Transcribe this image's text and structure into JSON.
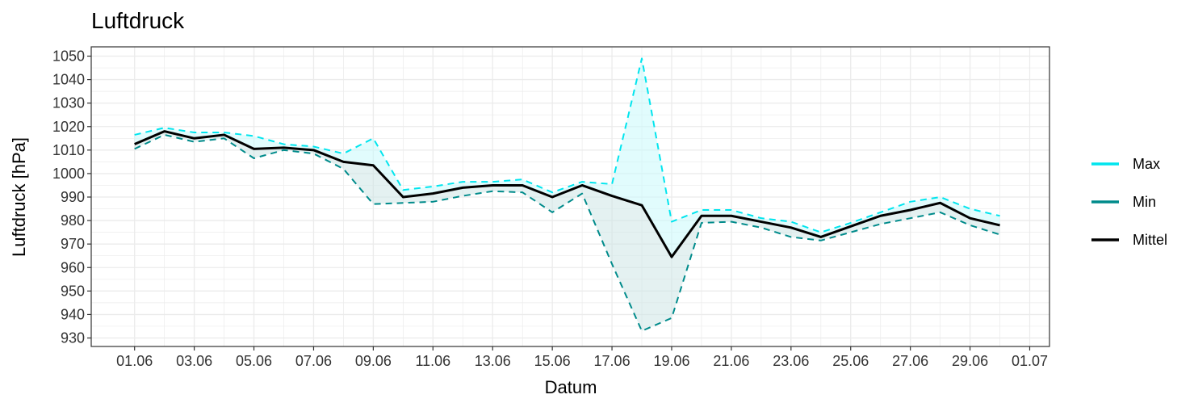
{
  "chart_data": {
    "type": "line",
    "title": "Luftdruck",
    "xlabel": "Datum",
    "ylabel": "Luftdruck [hPa]",
    "ylim": [
      930,
      1050
    ],
    "y_ticks": [
      930,
      940,
      950,
      960,
      970,
      980,
      990,
      1000,
      1010,
      1020,
      1030,
      1040,
      1050
    ],
    "x_tick_labels": [
      "01.06",
      "03.06",
      "05.06",
      "07.06",
      "09.06",
      "11.06",
      "13.06",
      "15.06",
      "17.06",
      "19.06",
      "21.06",
      "23.06",
      "25.06",
      "27.06",
      "29.06",
      "01.07"
    ],
    "x": [
      "01.06",
      "02.06",
      "03.06",
      "04.06",
      "05.06",
      "06.06",
      "07.06",
      "08.06",
      "09.06",
      "10.06",
      "11.06",
      "12.06",
      "13.06",
      "14.06",
      "15.06",
      "16.06",
      "17.06",
      "18.06",
      "19.06",
      "20.06",
      "21.06",
      "22.06",
      "23.06",
      "24.06",
      "25.06",
      "26.06",
      "27.06",
      "28.06",
      "29.06",
      "30.06"
    ],
    "series": [
      {
        "name": "Max",
        "color": "#00e5ee",
        "style": "dashed",
        "values": [
          1016.5,
          1019.5,
          1017.5,
          1017.5,
          1016,
          1012.5,
          1011.5,
          1008.5,
          1015,
          993,
          994.5,
          996.5,
          996.5,
          997.5,
          992,
          996.5,
          995.5,
          1049,
          979.5,
          984.5,
          984.5,
          981,
          979.5,
          975,
          979,
          983.5,
          988,
          990,
          985,
          982
        ]
      },
      {
        "name": "Min",
        "color": "#008b8b",
        "style": "dashed",
        "values": [
          1010.5,
          1016.5,
          1013.5,
          1015,
          1006.5,
          1010,
          1008.5,
          1002,
          987,
          987.5,
          988,
          990.5,
          992.5,
          992,
          983.5,
          991.5,
          961.5,
          933,
          938.5,
          979,
          979.5,
          977,
          973,
          971.5,
          975,
          978.5,
          981,
          983.5,
          978,
          974
        ]
      },
      {
        "name": "Mittel",
        "color": "#000000",
        "style": "solid",
        "values": [
          1012.5,
          1018,
          1015,
          1016.5,
          1010.5,
          1011,
          1010,
          1005,
          1003.5,
          990,
          991.5,
          994,
          995,
          995,
          990,
          995,
          990.5,
          986.5,
          964.5,
          982,
          982,
          979.5,
          977,
          973,
          977.5,
          982,
          984.5,
          987.5,
          981,
          978
        ]
      }
    ],
    "band_colors": {
      "upper": "#c9fafc",
      "lower": "#cde6e6"
    },
    "grid": true,
    "legend_position": "right"
  }
}
